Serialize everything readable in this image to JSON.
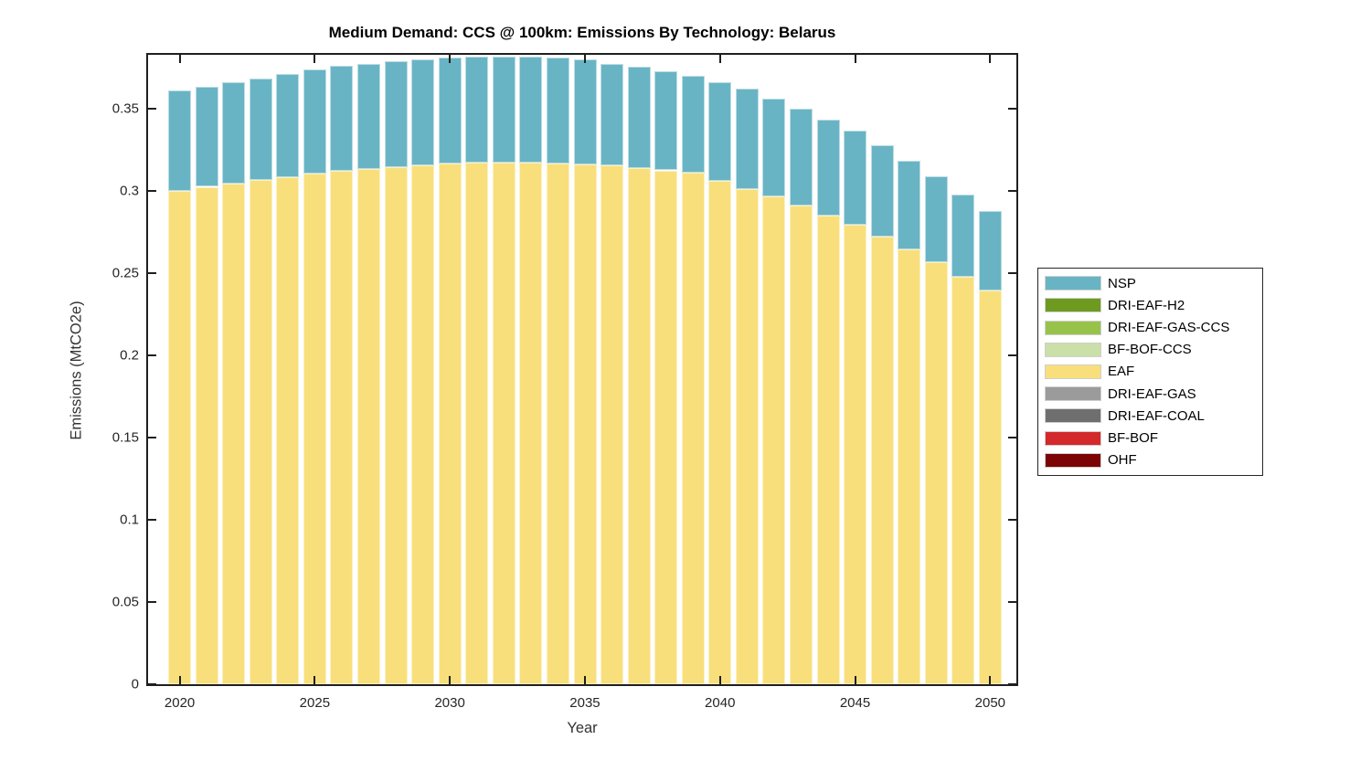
{
  "chart_data": {
    "type": "bar",
    "stacked": true,
    "title": "Medium Demand: CCS @ 100km: Emissions By Technology: Belarus",
    "xlabel": "Year",
    "ylabel": "Emissions (MtCO2e)",
    "legend_position": "right-outside",
    "grid": false,
    "xlim": [
      2018.83,
      2050.97
    ],
    "ylim": [
      0,
      0.3828
    ],
    "x_ticks": [
      2020,
      2025,
      2030,
      2035,
      2040,
      2045,
      2050
    ],
    "y_ticks": [
      {
        "value": 0,
        "label": "0"
      },
      {
        "value": 0.05,
        "label": "0.05"
      },
      {
        "value": 0.1,
        "label": "0.1"
      },
      {
        "value": 0.15,
        "label": "0.15"
      },
      {
        "value": 0.2,
        "label": "0.2"
      },
      {
        "value": 0.25,
        "label": "0.25"
      },
      {
        "value": 0.3,
        "label": "0.3"
      },
      {
        "value": 0.35,
        "label": "0.35"
      }
    ],
    "x": [
      2020,
      2021,
      2022,
      2023,
      2024,
      2025,
      2026,
      2027,
      2028,
      2029,
      2030,
      2031,
      2032,
      2033,
      2034,
      2035,
      2036,
      2037,
      2038,
      2039,
      2040,
      2041,
      2042,
      2043,
      2044,
      2045,
      2046,
      2047,
      2048,
      2049,
      2050
    ],
    "series": [
      {
        "name": "NSP",
        "color": "#69B4C4",
        "values": [
          0.061,
          0.061,
          0.0615,
          0.062,
          0.0625,
          0.0635,
          0.064,
          0.064,
          0.0645,
          0.0645,
          0.0645,
          0.0645,
          0.0645,
          0.0645,
          0.0645,
          0.064,
          0.062,
          0.0615,
          0.0605,
          0.059,
          0.06,
          0.061,
          0.0595,
          0.059,
          0.0585,
          0.057,
          0.056,
          0.054,
          0.0525,
          0.05,
          0.0485
        ]
      },
      {
        "name": "DRI-EAF-H2",
        "color": "#6E9A20",
        "values": [
          0,
          0,
          0,
          0,
          0,
          0,
          0,
          0,
          0,
          0,
          0,
          0,
          0,
          0,
          0,
          0,
          0,
          0,
          0,
          0,
          0,
          0,
          0,
          0,
          0,
          0,
          0,
          0,
          0,
          0,
          0
        ]
      },
      {
        "name": "DRI-EAF-GAS-CCS",
        "color": "#98C34B",
        "values": [
          0,
          0,
          0,
          0,
          0,
          0,
          0,
          0,
          0,
          0,
          0,
          0,
          0,
          0,
          0,
          0,
          0,
          0,
          0,
          0,
          0,
          0,
          0,
          0,
          0,
          0,
          0,
          0,
          0,
          0,
          0
        ]
      },
      {
        "name": "BF-BOF-CCS",
        "color": "#CAE0A8",
        "values": [
          0,
          0,
          0,
          0,
          0,
          0,
          0,
          0,
          0,
          0,
          0,
          0,
          0,
          0,
          0,
          0,
          0,
          0,
          0,
          0,
          0,
          0,
          0,
          0,
          0,
          0,
          0,
          0,
          0,
          0,
          0
        ]
      },
      {
        "name": "EAF",
        "color": "#F8DF7B",
        "values": [
          0.3,
          0.3025,
          0.3045,
          0.3065,
          0.3085,
          0.3105,
          0.312,
          0.3135,
          0.3145,
          0.3155,
          0.3165,
          0.317,
          0.317,
          0.317,
          0.3165,
          0.316,
          0.3155,
          0.314,
          0.3125,
          0.311,
          0.306,
          0.301,
          0.2965,
          0.291,
          0.285,
          0.2795,
          0.272,
          0.2645,
          0.2565,
          0.248,
          0.2395
        ]
      },
      {
        "name": "DRI-EAF-GAS",
        "color": "#9B9B9B",
        "values": [
          0,
          0,
          0,
          0,
          0,
          0,
          0,
          0,
          0,
          0,
          0,
          0,
          0,
          0,
          0,
          0,
          0,
          0,
          0,
          0,
          0,
          0,
          0,
          0,
          0,
          0,
          0,
          0,
          0,
          0,
          0
        ]
      },
      {
        "name": "DRI-EAF-COAL",
        "color": "#6F6F6F",
        "values": [
          0,
          0,
          0,
          0,
          0,
          0,
          0,
          0,
          0,
          0,
          0,
          0,
          0,
          0,
          0,
          0,
          0,
          0,
          0,
          0,
          0,
          0,
          0,
          0,
          0,
          0,
          0,
          0,
          0,
          0,
          0
        ]
      },
      {
        "name": "BF-BOF",
        "color": "#D3292B",
        "values": [
          0,
          0,
          0,
          0,
          0,
          0,
          0,
          0,
          0,
          0,
          0,
          0,
          0,
          0,
          0,
          0,
          0,
          0,
          0,
          0,
          0,
          0,
          0,
          0,
          0,
          0,
          0,
          0,
          0,
          0,
          0
        ]
      },
      {
        "name": "OHF",
        "color": "#7D0404",
        "values": [
          0,
          0,
          0,
          0,
          0,
          0,
          0,
          0,
          0,
          0,
          0,
          0,
          0,
          0,
          0,
          0,
          0,
          0,
          0,
          0,
          0,
          0,
          0,
          0,
          0,
          0,
          0,
          0,
          0,
          0,
          0
        ]
      }
    ]
  }
}
